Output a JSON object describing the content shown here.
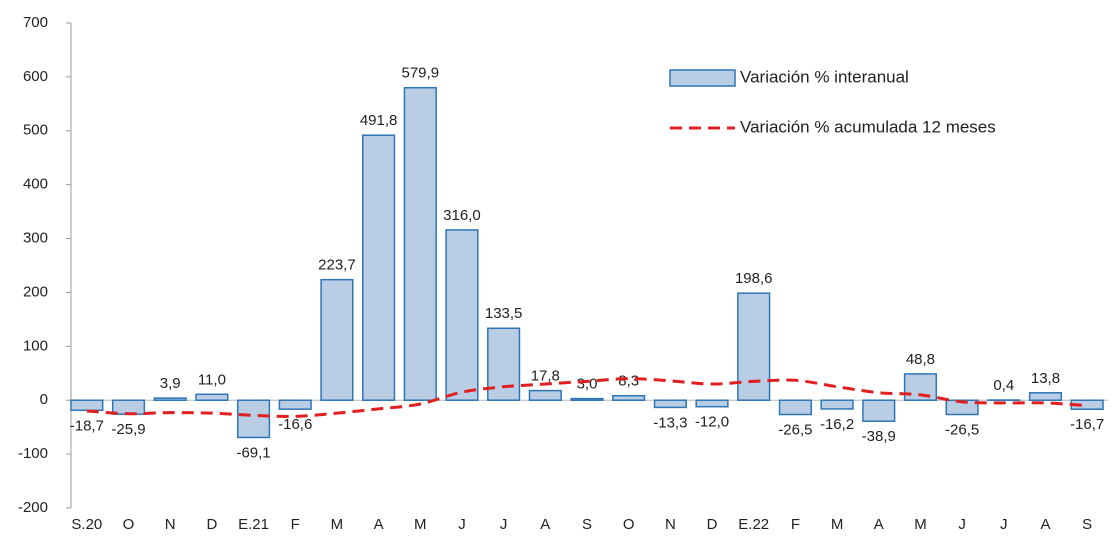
{
  "chart_data": {
    "type": "bar",
    "categories": [
      "S.20",
      "O",
      "N",
      "D",
      "E.21",
      "F",
      "M",
      "A",
      "M",
      "J",
      "J",
      "A",
      "S",
      "O",
      "N",
      "D",
      "E.22",
      "F",
      "M",
      "A",
      "M",
      "J",
      "J",
      "A",
      "S"
    ],
    "series": [
      {
        "name": "Variación % interanual",
        "type": "bar",
        "color": "#b9cde5",
        "stroke": "#2e75b6",
        "values": [
          -18.7,
          -25.9,
          3.9,
          11.0,
          -69.1,
          -16.6,
          223.7,
          491.8,
          579.9,
          316.0,
          133.5,
          17.8,
          3.0,
          8.3,
          -13.3,
          -12.0,
          198.6,
          -26.5,
          -16.2,
          -38.9,
          48.8,
          -26.5,
          0.4,
          13.8,
          -16.7
        ],
        "value_labels": [
          "-18,7",
          "-25,9",
          "3,9",
          "11,0",
          "-69,1",
          "-16,6",
          "223,7",
          "491,8",
          "579,9",
          "316,0",
          "133,5",
          "17,8",
          "3,0",
          "8,3",
          "-13,3",
          "-12,0",
          "198,6",
          "-26,5",
          "-16,2",
          "-38,9",
          "48,8",
          "-26,5",
          "0,4",
          "13,8",
          "-16,7"
        ]
      },
      {
        "name": "Variación % acumulada 12 meses",
        "type": "line",
        "color": "#e02020",
        "dashed": true,
        "values": [
          -20,
          -25,
          -23,
          -24,
          -28,
          -30,
          -24,
          -16,
          -7,
          15,
          25,
          30,
          35,
          40,
          36,
          30,
          35,
          37,
          25,
          14,
          10,
          -3,
          -5,
          -5,
          -10
        ]
      }
    ],
    "ylim": [
      -200,
      700
    ],
    "yticks": [
      -200,
      -100,
      0,
      100,
      200,
      300,
      400,
      500,
      600,
      700
    ],
    "grid": false
  }
}
